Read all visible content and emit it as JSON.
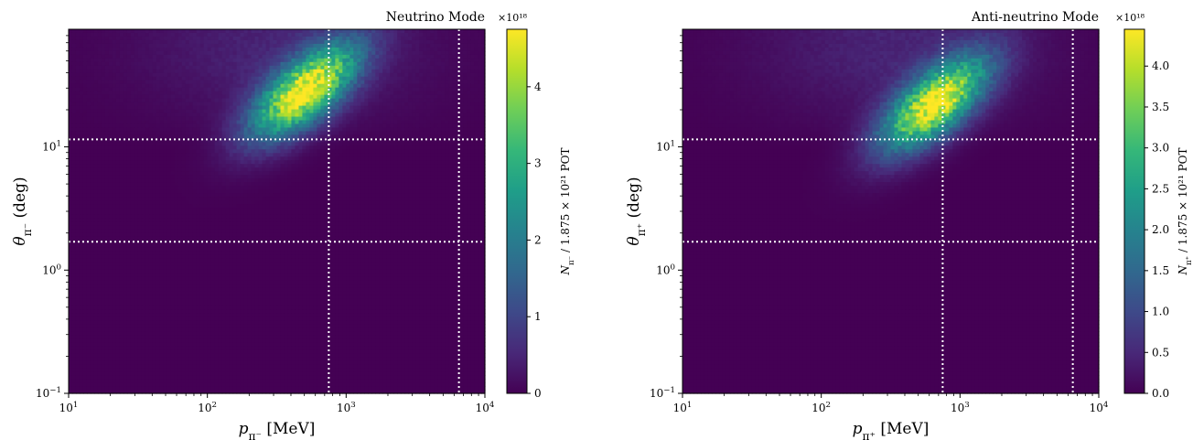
{
  "colormap": {
    "name": "viridis",
    "stops": [
      "#440154",
      "#482878",
      "#3e4989",
      "#31688e",
      "#26828e",
      "#1f9e89",
      "#35b779",
      "#6ece58",
      "#b5de2b",
      "#fde725"
    ]
  },
  "guide_color": "#ffffff",
  "chart_data": [
    {
      "type": "heatmap",
      "title": "Neutrino Mode",
      "xlabel": "p_{π⁻} [MeV]",
      "ylabel": "θ_{π⁻} (deg)",
      "x_scale": "log",
      "y_scale": "log",
      "xlim": [
        10,
        10000
      ],
      "ylim": [
        0.1,
        90
      ],
      "x_ticks": [
        {
          "value": 10,
          "base": "10",
          "exp": "1"
        },
        {
          "value": 100,
          "base": "10",
          "exp": "2"
        },
        {
          "value": 1000,
          "base": "10",
          "exp": "3"
        },
        {
          "value": 10000,
          "base": "10",
          "exp": "4"
        }
      ],
      "y_ticks": [
        {
          "value": 0.1,
          "base": "10",
          "exp": "−1"
        },
        {
          "value": 1,
          "base": "10",
          "exp": "0"
        },
        {
          "value": 10,
          "base": "10",
          "exp": "1"
        }
      ],
      "guide_lines_x": [
        750,
        6500
      ],
      "guide_lines_y": [
        1.7,
        11.5
      ],
      "colorbar": {
        "label": "N_{π⁻} / 1.875 × 10²¹ POT",
        "multiplier": "×10¹⁸",
        "range": [
          0,
          4.75
        ],
        "ticks": [
          "0",
          "1",
          "2",
          "3",
          "4"
        ],
        "tick_values": [
          0,
          1,
          2,
          3,
          4
        ]
      },
      "peak": {
        "p": 500,
        "theta": 28,
        "value": 4.7
      }
    },
    {
      "type": "heatmap",
      "title": "Anti-neutrino Mode",
      "xlabel": "p_{π⁺} [MeV]",
      "ylabel": "θ_{π⁺} (deg)",
      "x_scale": "log",
      "y_scale": "log",
      "xlim": [
        10,
        10000
      ],
      "ylim": [
        0.1,
        90
      ],
      "x_ticks": [
        {
          "value": 10,
          "base": "10",
          "exp": "1"
        },
        {
          "value": 100,
          "base": "10",
          "exp": "2"
        },
        {
          "value": 1000,
          "base": "10",
          "exp": "3"
        },
        {
          "value": 10000,
          "base": "10",
          "exp": "4"
        }
      ],
      "y_ticks": [
        {
          "value": 0.1,
          "base": "10",
          "exp": "−1"
        },
        {
          "value": 1,
          "base": "10",
          "exp": "0"
        },
        {
          "value": 10,
          "base": "10",
          "exp": "1"
        }
      ],
      "guide_lines_x": [
        750,
        6500
      ],
      "guide_lines_y": [
        1.7,
        11.5
      ],
      "colorbar": {
        "label": "N_{π⁺} / 1.875 × 10²¹ POT",
        "multiplier": "×10¹⁸",
        "range": [
          0,
          4.45
        ],
        "ticks": [
          "0.0",
          "0.5",
          "1.0",
          "1.5",
          "2.0",
          "2.5",
          "3.0",
          "3.5",
          "4.0"
        ],
        "tick_values": [
          0,
          0.5,
          1.0,
          1.5,
          2.0,
          2.5,
          3.0,
          3.5,
          4.0
        ]
      },
      "peak": {
        "p": 650,
        "theta": 22,
        "value": 4.4
      }
    }
  ]
}
